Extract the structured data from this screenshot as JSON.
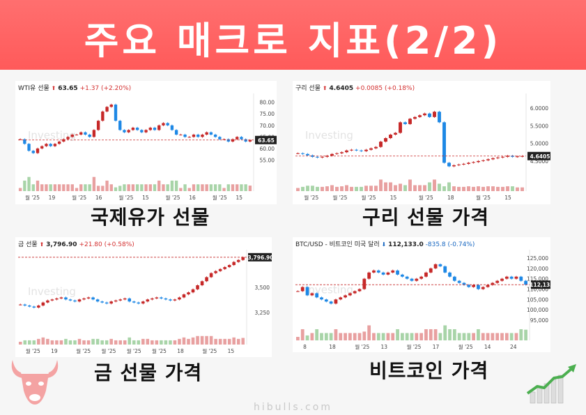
{
  "header": {
    "title": "주요 매크로 지표(2/2)"
  },
  "footer": {
    "site": "hibulls.com"
  },
  "panels": [
    {
      "id": "wti",
      "name": "WTI유 선물",
      "arrow": "⬆",
      "price": "63.65",
      "change": "+1.37 (+2.20%)",
      "direction": "up",
      "last_label": "63.65",
      "caption": "국제유가 선물",
      "y_ticks": [
        "80.00",
        "75.00",
        "70.00",
        "65.00",
        "60.00",
        "55.00"
      ],
      "x_ticks": [
        "월 '25",
        "19",
        "월 '25",
        "16",
        "월 '25",
        "15",
        "월 '25",
        "16",
        "월 '25",
        "15"
      ],
      "watermark": "Investing"
    },
    {
      "id": "copper",
      "name": "구리 선물",
      "arrow": "⬆",
      "price": "4.6405",
      "change": "+0.0085 (+0.18%)",
      "direction": "up",
      "last_label": "4.6405",
      "caption": "구리 선물 가격",
      "y_ticks": [
        "6.0000",
        "5.5000",
        "5.0000",
        "4.5000"
      ],
      "x_ticks": [
        "월 '25",
        "월 '25",
        "월 '25",
        "15",
        "월 '25",
        "18",
        "월 '25",
        "15"
      ],
      "watermark": "Investing"
    },
    {
      "id": "gold",
      "name": "금 선물",
      "arrow": "⬆",
      "price": "3,796.90",
      "change": "+21.80 (+0.58%)",
      "direction": "up",
      "last_label": "3,796.90",
      "caption": "금 선물 가격",
      "y_ticks": [
        "3,500",
        "3,250"
      ],
      "x_ticks": [
        "월 '25",
        "19",
        "월 '25",
        "월 '25",
        "월 '25",
        "월 '25",
        "18",
        "월 '25",
        "15"
      ],
      "watermark": "Investing"
    },
    {
      "id": "btc",
      "name": "BTC/USD - 비트코인 미국 달러",
      "arrow": "⬇",
      "price": "112,133.0",
      "change": "-835.8 (-0.74%)",
      "direction": "down",
      "last_label": "112,133.00",
      "caption": "비트코인 가격",
      "y_ticks": [
        "125,000",
        "120,000",
        "115,000",
        "110,000",
        "105,000",
        "100,000",
        "95,000"
      ],
      "x_ticks": [
        "8",
        "18",
        "월 '25",
        "13",
        "월 '25",
        "17",
        "월 '25",
        "14",
        "24"
      ],
      "watermark": "Investing"
    }
  ],
  "colors": {
    "header": "#ff5e5e",
    "up_candle": "#c62828",
    "down_candle": "#1e88e5",
    "up_text": "#d32f2f",
    "down_text": "#1565c0",
    "last_label_bg": "#222222"
  },
  "chart_data": [
    {
      "type": "line",
      "title": "WTI유 선물",
      "ylim": [
        50,
        82
      ],
      "series": [
        {
          "name": "WTI유 선물",
          "values": [
            64,
            62,
            59,
            58,
            60,
            61,
            62,
            61,
            62,
            63,
            64,
            65,
            66,
            66,
            67,
            66,
            65,
            68,
            72,
            76,
            78,
            79,
            72,
            68,
            67,
            68,
            69,
            68,
            67,
            68,
            69,
            68,
            70,
            71,
            70,
            68,
            66,
            66,
            65,
            65,
            66,
            65,
            66,
            67,
            66,
            65,
            64,
            64,
            63,
            64,
            65,
            64,
            63,
            63.65
          ]
        }
      ]
    },
    {
      "type": "line",
      "title": "구리 선물",
      "ylim": [
        4.2,
        6.3
      ],
      "series": [
        {
          "name": "구리 선물",
          "values": [
            4.72,
            4.7,
            4.66,
            4.62,
            4.6,
            4.62,
            4.65,
            4.7,
            4.72,
            4.75,
            4.8,
            4.82,
            4.8,
            4.78,
            4.82,
            4.86,
            4.9,
            5.05,
            5.15,
            5.25,
            5.3,
            5.6,
            5.55,
            5.7,
            5.75,
            5.8,
            5.85,
            5.75,
            5.9,
            5.6,
            4.45,
            4.35,
            4.38,
            4.4,
            4.42,
            4.45,
            4.47,
            4.5,
            4.52,
            4.55,
            4.58,
            4.6,
            4.62,
            4.65,
            4.62,
            4.63,
            4.6405
          ]
        }
      ]
    },
    {
      "type": "line",
      "title": "금 선물",
      "ylim": [
        3100,
        3830
      ],
      "series": [
        {
          "name": "금 선물",
          "values": [
            3330,
            3320,
            3310,
            3300,
            3320,
            3350,
            3370,
            3380,
            3390,
            3400,
            3380,
            3370,
            3360,
            3380,
            3390,
            3400,
            3380,
            3360,
            3350,
            3340,
            3360,
            3370,
            3380,
            3390,
            3360,
            3350,
            3340,
            3360,
            3380,
            3390,
            3400,
            3390,
            3380,
            3370,
            3380,
            3400,
            3430,
            3450,
            3480,
            3520,
            3560,
            3600,
            3640,
            3660,
            3680,
            3700,
            3720,
            3750,
            3770,
            3796.9
          ]
        }
      ]
    },
    {
      "type": "line",
      "title": "BTC/USD - 비트코인 미국 달러",
      "ylim": [
        93000,
        127000
      ],
      "series": [
        {
          "name": "BTC/USD",
          "values": [
            109000,
            111000,
            107000,
            108000,
            106000,
            105000,
            104000,
            103000,
            105000,
            106000,
            107000,
            108000,
            109000,
            110000,
            115000,
            118000,
            119000,
            118000,
            117000,
            118000,
            119000,
            117000,
            116000,
            115000,
            114000,
            115000,
            116000,
            118000,
            120000,
            122000,
            121000,
            118000,
            116000,
            114000,
            113000,
            112000,
            111000,
            112000,
            110000,
            111000,
            112000,
            113000,
            114000,
            115000,
            116000,
            115000,
            116000,
            114000,
            112133
          ]
        }
      ]
    }
  ]
}
